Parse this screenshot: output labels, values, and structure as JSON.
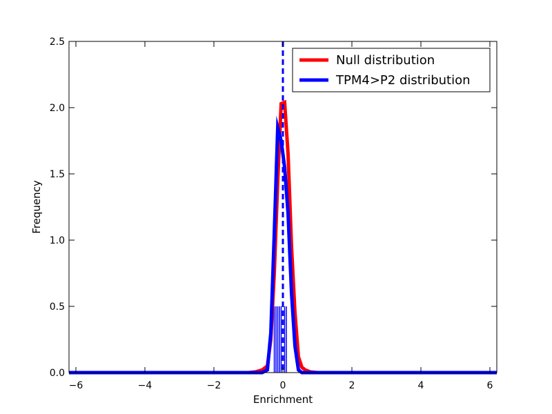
{
  "chart_data": {
    "type": "line",
    "title": "",
    "xlabel": "Enrichment",
    "ylabel": "Frequency",
    "xlim": [
      -6.2,
      6.2
    ],
    "ylim": [
      0,
      2.5
    ],
    "xticks": [
      -6,
      -4,
      -2,
      0,
      2,
      4,
      6
    ],
    "xtick_labels": [
      "−6",
      "−4",
      "−2",
      "0",
      "2",
      "4",
      "6"
    ],
    "yticks": [
      0,
      0.5,
      1.0,
      1.5,
      2.0,
      2.5
    ],
    "ytick_labels": [
      "0.0",
      "0.5",
      "1.0",
      "1.5",
      "2.0",
      "2.5"
    ],
    "grid": false,
    "legend_position": "top-right",
    "series": [
      {
        "name": "Null distribution",
        "color": "#ff0000",
        "x": [
          -6.2,
          -1.0,
          -0.8,
          -0.6,
          -0.45,
          -0.35,
          -0.25,
          -0.15,
          -0.05,
          0.05,
          0.15,
          0.25,
          0.35,
          0.45,
          0.55,
          0.65,
          0.8,
          1.0,
          6.2
        ],
        "y": [
          0,
          0,
          0.005,
          0.02,
          0.05,
          0.25,
          0.75,
          1.45,
          2.03,
          2.04,
          1.65,
          0.95,
          0.45,
          0.12,
          0.04,
          0.02,
          0.005,
          0,
          0
        ]
      },
      {
        "name": "TPM4>P2 distribution",
        "color": "#0000ff",
        "x": [
          -6.2,
          -0.6,
          -0.45,
          -0.35,
          -0.25,
          -0.15,
          -0.05,
          0.05,
          0.15,
          0.25,
          0.35,
          0.45,
          0.55,
          6.2
        ],
        "y": [
          0,
          0,
          0.02,
          0.3,
          1.05,
          1.85,
          1.75,
          1.55,
          1.2,
          0.6,
          0.2,
          0.02,
          0,
          0
        ]
      }
    ],
    "reference_line": {
      "x": 0.0,
      "color": "#0000ff",
      "style": "dashed"
    },
    "rug": {
      "color": "#0000ff",
      "x": [
        -0.25,
        -0.2,
        -0.15,
        -0.1,
        -0.05,
        0.05,
        0.1
      ],
      "height": 0.5
    }
  }
}
